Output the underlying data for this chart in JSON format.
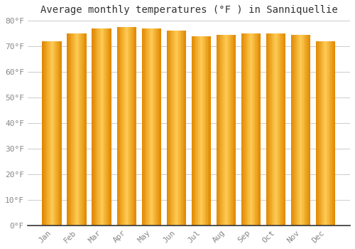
{
  "title": "Average monthly temperatures (°F ) in Sanniquellie",
  "months": [
    "Jan",
    "Feb",
    "Mar",
    "Apr",
    "May",
    "Jun",
    "Jul",
    "Aug",
    "Sep",
    "Oct",
    "Nov",
    "Dec"
  ],
  "values": [
    72,
    75,
    77,
    77.5,
    77,
    76,
    74,
    74.5,
    75,
    75,
    74.5,
    72
  ],
  "bar_color_main": "#FFA500",
  "bar_color_light": "#FFCC55",
  "bar_color_dark": "#E08800",
  "background_color": "#FFFFFF",
  "plot_bg_color": "#FFFFFF",
  "ylim": [
    0,
    80
  ],
  "yticks": [
    0,
    10,
    20,
    30,
    40,
    50,
    60,
    70,
    80
  ],
  "ytick_labels": [
    "0°F",
    "10°F",
    "20°F",
    "30°F",
    "40°F",
    "50°F",
    "60°F",
    "70°F",
    "80°F"
  ],
  "title_fontsize": 10,
  "tick_fontsize": 8,
  "grid_color": "#cccccc",
  "tick_color": "#888888",
  "spine_color": "#333333"
}
